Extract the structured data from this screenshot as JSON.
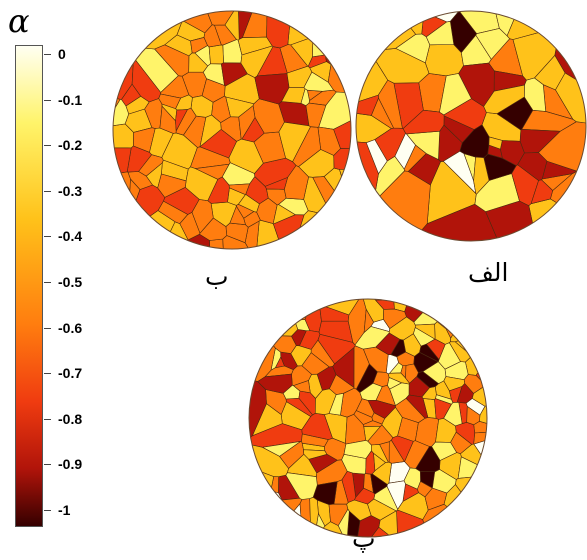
{
  "colorbar": {
    "symbol": "α",
    "ticks": [
      "0",
      "-0.1",
      "-0.2",
      "-0.3",
      "-0.4",
      "-0.5",
      "-0.6",
      "-0.7",
      "-0.8",
      "-0.9",
      "-1"
    ],
    "colors": [
      "#fffff2",
      "#fff46a",
      "#ffc21a",
      "#ff7d0f",
      "#f03c10",
      "#b1140a",
      "#350000"
    ]
  },
  "panels": [
    {
      "label": "ب"
    },
    {
      "label": "الف"
    },
    {
      "label": "پ"
    }
  ]
}
